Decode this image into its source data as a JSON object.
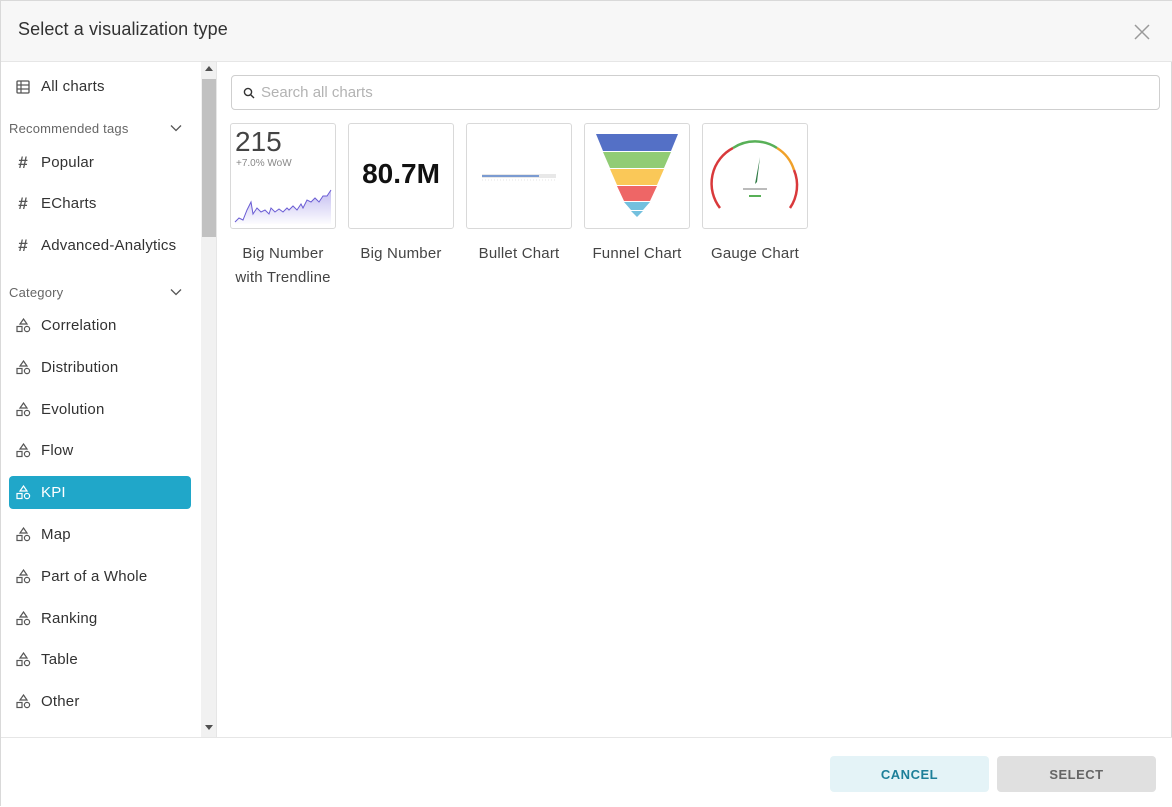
{
  "header": {
    "title": "Select a visualization type"
  },
  "sidebar": {
    "all_charts": "All charts",
    "recommended_label": "Recommended tags",
    "tags": [
      "Popular",
      "ECharts",
      "Advanced-Analytics"
    ],
    "category_label": "Category",
    "categories": [
      "Correlation",
      "Distribution",
      "Evolution",
      "Flow",
      "KPI",
      "Map",
      "Part of a Whole",
      "Ranking",
      "Table",
      "Other"
    ],
    "active_category": "KPI"
  },
  "search": {
    "placeholder": "Search all charts",
    "value": ""
  },
  "charts": [
    {
      "label": "Big Number with Trendline",
      "thumb_number": "215",
      "thumb_sub": "+7.0% WoW"
    },
    {
      "label": "Big Number",
      "thumb_number": "80.7M"
    },
    {
      "label": "Bullet Chart"
    },
    {
      "label": "Funnel Chart"
    },
    {
      "label": "Gauge Chart"
    }
  ],
  "footer": {
    "cancel_label": "CANCEL",
    "select_label": "SELECT"
  },
  "colors": {
    "accent": "#20a7c9",
    "funnel": [
      "#5470c6",
      "#91cc75",
      "#fac858",
      "#ee6666",
      "#73c0de"
    ]
  }
}
